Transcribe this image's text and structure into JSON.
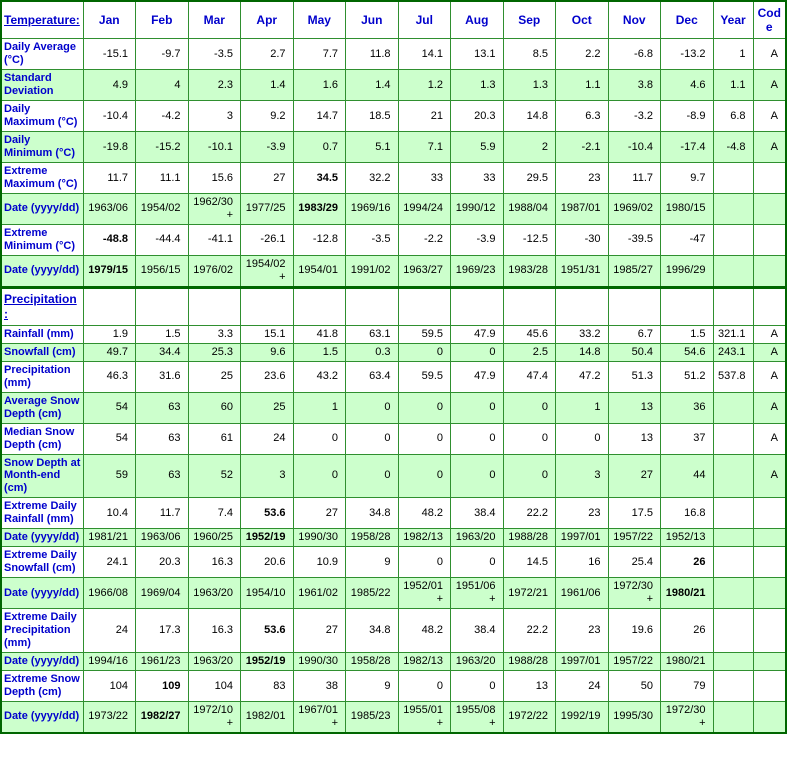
{
  "colors": {
    "row_alt_green": "#CCFFCC",
    "grid_border": "#2F8F2F",
    "outer_border": "#006600",
    "label_blue": "#0000CC",
    "value_black": "#000000"
  },
  "table": {
    "columns": [
      "Jan",
      "Feb",
      "Mar",
      "Apr",
      "May",
      "Jun",
      "Jul",
      "Aug",
      "Sep",
      "Oct",
      "Nov",
      "Dec",
      "Year",
      "Code"
    ],
    "header": {
      "section_label": "Temperature:"
    },
    "temperature": {
      "rows": [
        {
          "label": "Daily Average (°C)",
          "values": [
            "-15.1",
            "-9.7",
            "-3.5",
            "2.7",
            "7.7",
            "11.8",
            "14.1",
            "13.1",
            "8.5",
            "2.2",
            "-6.8",
            "-13.2",
            "1",
            "A"
          ],
          "bold": []
        },
        {
          "label": "Standard Deviation",
          "values": [
            "4.9",
            "4",
            "2.3",
            "1.4",
            "1.6",
            "1.4",
            "1.2",
            "1.3",
            "1.3",
            "1.1",
            "3.8",
            "4.6",
            "1.1",
            "A"
          ],
          "bold": []
        },
        {
          "label": "Daily Maximum (°C)",
          "values": [
            "-10.4",
            "-4.2",
            "3",
            "9.2",
            "14.7",
            "18.5",
            "21",
            "20.3",
            "14.8",
            "6.3",
            "-3.2",
            "-8.9",
            "6.8",
            "A"
          ],
          "bold": []
        },
        {
          "label": "Daily Minimum (°C)",
          "values": [
            "-19.8",
            "-15.2",
            "-10.1",
            "-3.9",
            "0.7",
            "5.1",
            "7.1",
            "5.9",
            "2",
            "-2.1",
            "-10.4",
            "-17.4",
            "-4.8",
            "A"
          ],
          "bold": []
        },
        {
          "label": "Extreme Maximum (°C)",
          "values": [
            "11.7",
            "11.1",
            "15.6",
            "27",
            "34.5",
            "32.2",
            "33",
            "33",
            "29.5",
            "23",
            "11.7",
            "9.7",
            "",
            ""
          ],
          "bold": [
            4
          ]
        },
        {
          "label": "Date (yyyy/dd)",
          "values": [
            "1963/06",
            "1954/02",
            "1962/30+",
            "1977/25",
            "1983/29",
            "1969/16",
            "1994/24",
            "1990/12",
            "1988/04",
            "1987/01",
            "1969/02",
            "1980/15",
            "",
            ""
          ],
          "bold": [
            4
          ]
        },
        {
          "label": "Extreme Minimum (°C)",
          "values": [
            "-48.8",
            "-44.4",
            "-41.1",
            "-26.1",
            "-12.8",
            "-3.5",
            "-2.2",
            "-3.9",
            "-12.5",
            "-30",
            "-39.5",
            "-47",
            "",
            ""
          ],
          "bold": [
            0
          ]
        },
        {
          "label": "Date (yyyy/dd)",
          "values": [
            "1979/15",
            "1956/15",
            "1976/02",
            "1954/02+",
            "1954/01",
            "1991/02",
            "1963/27",
            "1969/23",
            "1983/28",
            "1951/31",
            "1985/27",
            "1996/29",
            "",
            ""
          ],
          "bold": [
            0
          ]
        }
      ]
    },
    "precipitation": {
      "section_label": "Precipitation:",
      "rows": [
        {
          "label": "Rainfall (mm)",
          "values": [
            "1.9",
            "1.5",
            "3.3",
            "15.1",
            "41.8",
            "63.1",
            "59.5",
            "47.9",
            "45.6",
            "33.2",
            "6.7",
            "1.5",
            "321.1",
            "A"
          ],
          "bold": []
        },
        {
          "label": "Snowfall (cm)",
          "values": [
            "49.7",
            "34.4",
            "25.3",
            "9.6",
            "1.5",
            "0.3",
            "0",
            "0",
            "2.5",
            "14.8",
            "50.4",
            "54.6",
            "243.1",
            "A"
          ],
          "bold": []
        },
        {
          "label": "Precipitation (mm)",
          "values": [
            "46.3",
            "31.6",
            "25",
            "23.6",
            "43.2",
            "63.4",
            "59.5",
            "47.9",
            "47.4",
            "47.2",
            "51.3",
            "51.2",
            "537.8",
            "A"
          ],
          "bold": []
        },
        {
          "label": "Average Snow Depth (cm)",
          "values": [
            "54",
            "63",
            "60",
            "25",
            "1",
            "0",
            "0",
            "0",
            "0",
            "1",
            "13",
            "36",
            "",
            "A"
          ],
          "bold": []
        },
        {
          "label": "Median Snow Depth (cm)",
          "values": [
            "54",
            "63",
            "61",
            "24",
            "0",
            "0",
            "0",
            "0",
            "0",
            "0",
            "13",
            "37",
            "",
            "A"
          ],
          "bold": []
        },
        {
          "label": "Snow Depth at Month-end (cm)",
          "values": [
            "59",
            "63",
            "52",
            "3",
            "0",
            "0",
            "0",
            "0",
            "0",
            "3",
            "27",
            "44",
            "",
            "A"
          ],
          "bold": []
        },
        {
          "label": "Extreme Daily Rainfall (mm)",
          "values": [
            "10.4",
            "11.7",
            "7.4",
            "53.6",
            "27",
            "34.8",
            "48.2",
            "38.4",
            "22.2",
            "23",
            "17.5",
            "16.8",
            "",
            ""
          ],
          "bold": [
            3
          ]
        },
        {
          "label": "Date (yyyy/dd)",
          "values": [
            "1981/21",
            "1963/06",
            "1960/25",
            "1952/19",
            "1990/30",
            "1958/28",
            "1982/13",
            "1963/20",
            "1988/28",
            "1997/01",
            "1957/22",
            "1952/13",
            "",
            ""
          ],
          "bold": [
            3
          ]
        },
        {
          "label": "Extreme Daily Snowfall (cm)",
          "values": [
            "24.1",
            "20.3",
            "16.3",
            "20.6",
            "10.9",
            "9",
            "0",
            "0",
            "14.5",
            "16",
            "25.4",
            "26",
            "",
            ""
          ],
          "bold": [
            11
          ]
        },
        {
          "label": "Date (yyyy/dd)",
          "values": [
            "1966/08",
            "1969/04",
            "1963/20",
            "1954/10",
            "1961/02",
            "1985/22",
            "1952/01+",
            "1951/06+",
            "1972/21",
            "1961/06",
            "1972/30+",
            "1980/21",
            "",
            ""
          ],
          "bold": [
            11
          ]
        },
        {
          "label": "Extreme Daily Precipitation (mm)",
          "values": [
            "24",
            "17.3",
            "16.3",
            "53.6",
            "27",
            "34.8",
            "48.2",
            "38.4",
            "22.2",
            "23",
            "19.6",
            "26",
            "",
            ""
          ],
          "bold": [
            3
          ]
        },
        {
          "label": "Date (yyyy/dd)",
          "values": [
            "1994/16",
            "1961/23",
            "1963/20",
            "1952/19",
            "1990/30",
            "1958/28",
            "1982/13",
            "1963/20",
            "1988/28",
            "1997/01",
            "1957/22",
            "1980/21",
            "",
            ""
          ],
          "bold": [
            3
          ]
        },
        {
          "label": "Extreme Snow Depth (cm)",
          "values": [
            "104",
            "109",
            "104",
            "83",
            "38",
            "9",
            "0",
            "0",
            "13",
            "24",
            "50",
            "79",
            "",
            ""
          ],
          "bold": [
            1
          ]
        },
        {
          "label": "Date (yyyy/dd)",
          "values": [
            "1973/22",
            "1982/27",
            "1972/10+",
            "1982/01",
            "1967/01+",
            "1985/23",
            "1955/01+",
            "1955/08+",
            "1972/22",
            "1992/19",
            "1995/30",
            "1972/30+",
            "",
            ""
          ],
          "bold": [
            1
          ]
        }
      ]
    }
  }
}
